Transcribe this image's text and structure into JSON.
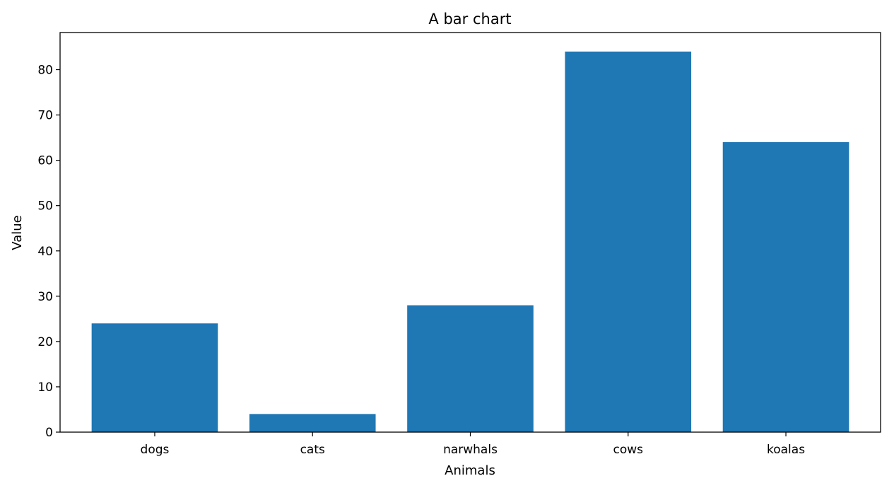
{
  "chart_data": {
    "type": "bar",
    "title": "A bar chart",
    "xlabel": "Animals",
    "ylabel": "Value",
    "categories": [
      "dogs",
      "cats",
      "narwhals",
      "cows",
      "koalas"
    ],
    "values": [
      24,
      4,
      28,
      84,
      64
    ],
    "ylim": [
      0,
      88.2
    ],
    "yticks": [
      0,
      10,
      20,
      30,
      40,
      50,
      60,
      70,
      80
    ],
    "grid": false,
    "bar_color": "#1f77b4"
  }
}
